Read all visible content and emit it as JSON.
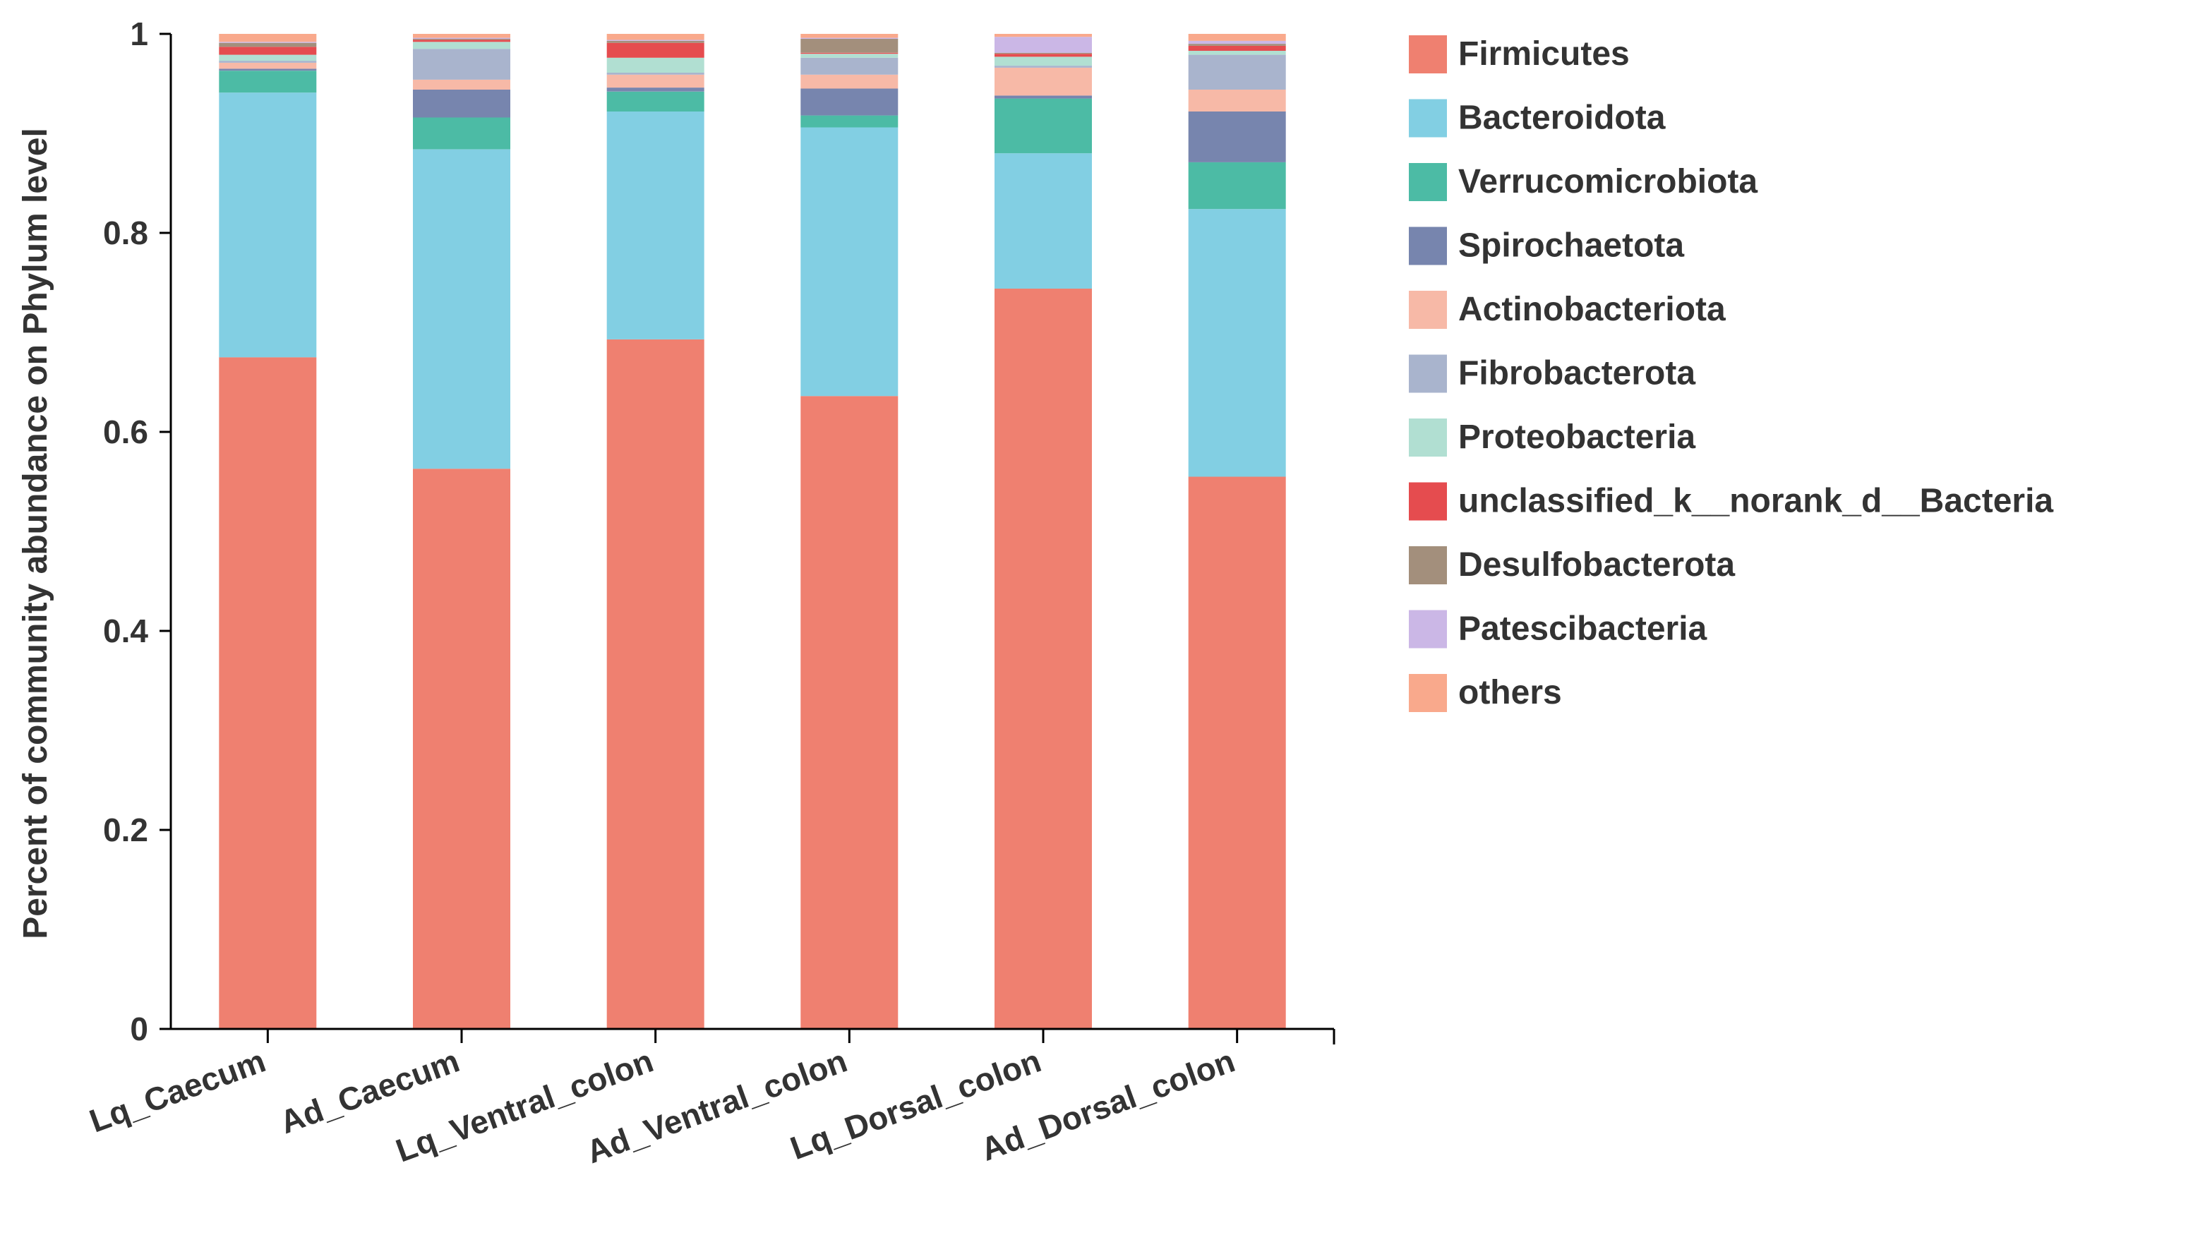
{
  "chart_data": {
    "type": "bar",
    "stacked": true,
    "title": "",
    "xlabel": "",
    "ylabel": "Percent of community abundance on Phylum level",
    "ylim": [
      0,
      1
    ],
    "yticks": [
      "0",
      "0.2",
      "0.4",
      "0.6",
      "0.8",
      "1"
    ],
    "ytick_values": [
      0,
      0.2,
      0.4,
      0.6,
      0.8,
      1
    ],
    "categories": [
      "Lq_Caecum",
      "Ad_Caecum",
      "Lq_Ventral_colon",
      "Ad_Ventral_colon",
      "Lq_Dorsal_colon",
      "Ad_Dorsal_colon"
    ],
    "legend_position": "right",
    "series": [
      {
        "name": "Firmicutes",
        "color": "#EF8070",
        "values": [
          0.675,
          0.563,
          0.693,
          0.636,
          0.744,
          0.555
        ]
      },
      {
        "name": "Bacteroidota",
        "color": "#82CFE3",
        "values": [
          0.266,
          0.321,
          0.229,
          0.27,
          0.136,
          0.269
        ]
      },
      {
        "name": "Verrucomicrobiota",
        "color": "#4CBBA5",
        "values": [
          0.022,
          0.032,
          0.02,
          0.012,
          0.055,
          0.047
        ]
      },
      {
        "name": "Spirochaetota",
        "color": "#7785AE",
        "values": [
          0.002,
          0.028,
          0.004,
          0.027,
          0.003,
          0.051
        ]
      },
      {
        "name": "Actinobacteriota",
        "color": "#F7B9A7",
        "values": [
          0.006,
          0.01,
          0.013,
          0.014,
          0.028,
          0.022
        ]
      },
      {
        "name": "Fibrobacterota",
        "color": "#A9B4CD",
        "values": [
          0.002,
          0.031,
          0.002,
          0.017,
          0.002,
          0.035
        ]
      },
      {
        "name": "Proteobacteria",
        "color": "#B1DFD2",
        "values": [
          0.006,
          0.007,
          0.015,
          0.004,
          0.009,
          0.004
        ]
      },
      {
        "name": "unclassified_k__norank_d__Bacteria",
        "color": "#E54C4F",
        "values": [
          0.008,
          0.002,
          0.015,
          0.001,
          0.003,
          0.005
        ]
      },
      {
        "name": "Desulfobacterota",
        "color": "#A38F7C",
        "values": [
          0.004,
          0.001,
          0.002,
          0.014,
          0.001,
          0.002
        ]
      },
      {
        "name": "Patescibacteria",
        "color": "#CBB7E6",
        "values": [
          0.001,
          0.001,
          0.001,
          0.001,
          0.016,
          0.003
        ]
      },
      {
        "name": "others",
        "color": "#F9A98C",
        "values": [
          0.008,
          0.004,
          0.006,
          0.004,
          0.003,
          0.007
        ]
      }
    ]
  }
}
